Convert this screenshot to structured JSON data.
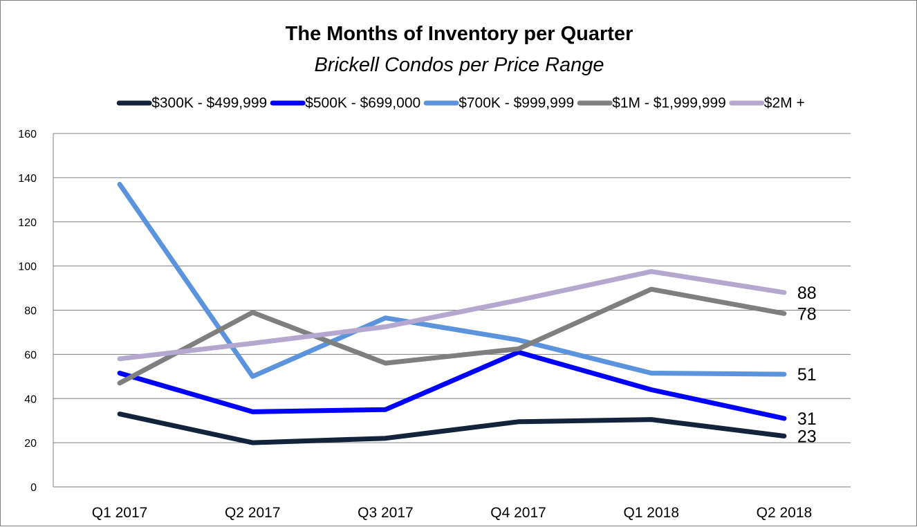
{
  "chart_data": {
    "type": "line",
    "title": "The Months of Inventory per Quarter",
    "subtitle": "Brickell Condos per Price Range",
    "categories": [
      "Q1 2017",
      "Q2 2017",
      "Q3 2017",
      "Q4 2017",
      "Q1 2018",
      "Q2 2018"
    ],
    "ylim": [
      0,
      160
    ],
    "yticks": [
      0,
      20,
      40,
      60,
      80,
      100,
      120,
      140,
      160
    ],
    "grid": true,
    "legend_position": "top",
    "series": [
      {
        "name": "$300K - $499,999",
        "color": "#14233c",
        "values": [
          33,
          20,
          22,
          29.5,
          30.5,
          23
        ],
        "end_label": "23"
      },
      {
        "name": "$500K - $699,000",
        "color": "#0000ff",
        "values": [
          51.5,
          34,
          35,
          61,
          44,
          31
        ],
        "end_label": "31"
      },
      {
        "name": "$700K - $999,999",
        "color": "#5b94dd",
        "values": [
          137,
          50,
          76.5,
          66.5,
          51.5,
          51
        ],
        "end_label": "51"
      },
      {
        "name": "$1M - $1,999,999",
        "color": "#7f7f7f",
        "values": [
          47,
          79,
          56,
          62.5,
          89.5,
          78.5
        ],
        "end_label": "78"
      },
      {
        "name": "$2M +",
        "color": "#b4a7d0",
        "values": [
          58,
          65,
          72.5,
          84.5,
          97.5,
          88
        ],
        "end_label": "88"
      }
    ]
  }
}
